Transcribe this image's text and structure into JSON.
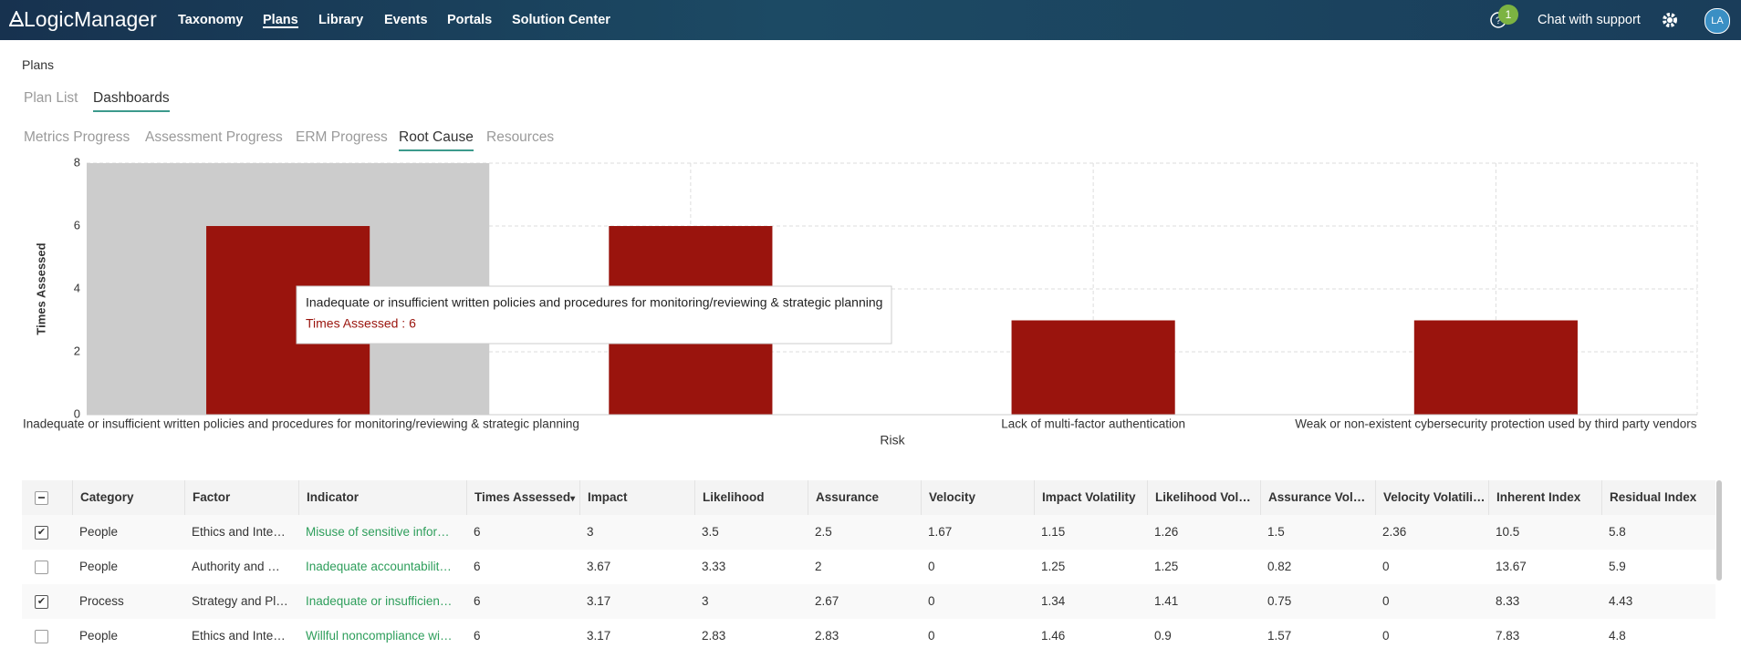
{
  "nav": {
    "logo": "LogicManager",
    "items": [
      "Taxonomy",
      "Plans",
      "Library",
      "Events",
      "Portals",
      "Solution Center"
    ],
    "active": 1,
    "badge": "1",
    "support": "Chat with support",
    "avatar": "LA"
  },
  "page_title": "Plans",
  "tabs": {
    "items": [
      "Plan List",
      "Dashboards"
    ],
    "active": 1
  },
  "subtabs": {
    "items": [
      "Metrics Progress",
      "Assessment Progress",
      "ERM Progress",
      "Root Cause",
      "Resources"
    ],
    "active": 3
  },
  "chart_data": {
    "type": "bar",
    "x_label": "Risk",
    "y_label": "Times Assessed",
    "categories": [
      "Inadequate or insufficient written policies and procedures for monitoring/reviewing & strategic planning",
      null,
      "Lack of multi-factor authentication",
      "Weak or non-existent cybersecurity protection used by third party vendors"
    ],
    "values": [
      6,
      6,
      3,
      3
    ],
    "color": "#9a140d",
    "highlight": 0,
    "ylim": [
      0,
      8
    ],
    "yticks": [
      0,
      2,
      4,
      6,
      8
    ],
    "grid": true
  },
  "tooltip": {
    "title": "Inadequate or insufficient written policies and procedures for monitoring/reviewing & strategic planning",
    "text": "Times Assessed : 6"
  },
  "table": {
    "headers": [
      "Category",
      "Factor",
      "Indicator",
      "Times Assessed",
      "Impact",
      "Likelihood",
      "Assurance",
      "Velocity",
      "Impact Volatility",
      "Likelihood Vol…",
      "Assurance Vol…",
      "Velocity Volatili…",
      "Inherent Index",
      "Residual Index"
    ],
    "sort_column": 3,
    "link_column": 2,
    "rows": [
      {
        "checked": true,
        "cells": [
          "People",
          "Ethics and Inte…",
          "Misuse of sensitive infor…",
          6,
          3,
          3.5,
          2.5,
          1.67,
          1.15,
          1.26,
          1.5,
          2.36,
          10.5,
          5.8
        ]
      },
      {
        "checked": false,
        "cells": [
          "People",
          "Authority and …",
          "Inadequate accountabilit…",
          6,
          3.67,
          3.33,
          2,
          0,
          1.25,
          1.25,
          0.82,
          0,
          13.67,
          5.9
        ]
      },
      {
        "checked": true,
        "cells": [
          "Process",
          "Strategy and Pl…",
          "Inadequate or insufficien…",
          6,
          3.17,
          3,
          2.67,
          0,
          1.34,
          1.41,
          0.75,
          0,
          8.33,
          4.43
        ]
      },
      {
        "checked": false,
        "cells": [
          "People",
          "Ethics and Inte…",
          "Willful noncompliance wi…",
          6,
          3.17,
          2.83,
          2.83,
          0,
          1.46,
          0.9,
          1.57,
          0,
          7.83,
          4.8
        ]
      }
    ]
  }
}
